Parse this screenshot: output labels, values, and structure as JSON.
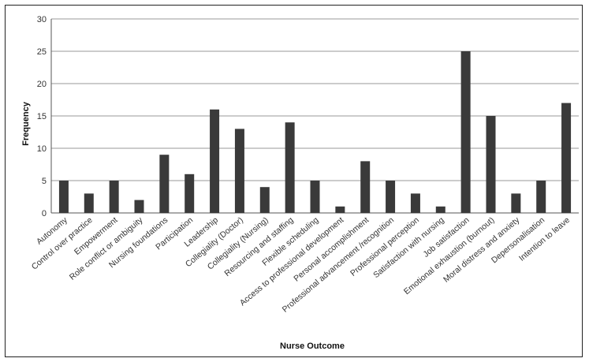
{
  "chart_data": {
    "type": "bar",
    "title": "",
    "xlabel": "Nurse Outcome",
    "ylabel": "Frequency",
    "ylim": [
      0,
      30
    ],
    "yticks": [
      0,
      5,
      10,
      15,
      20,
      25,
      30
    ],
    "grid": true,
    "legend": "none",
    "bar_color": "#3a3a3a",
    "categories": [
      "Autonomy",
      "Control over practice",
      "Empowerment",
      "Role conflict or ambiguity",
      "Nursing foundations",
      "Participation",
      "Leadership",
      "Collegiality (Doctor)",
      "Collegiality (Nursing)",
      "Resourcing and staffing",
      "Flexible scheduling",
      "Access to professional development",
      "Personal accomplishment",
      "Professional advancement /recognition",
      "Professional perception",
      "Satisfaction with nursing",
      "Job satisfaction",
      "Emotional exhaustion (burnout)",
      "Moral distress and anxiety",
      "Depersonalisation",
      "Intention to leave"
    ],
    "values": [
      5,
      3,
      5,
      2,
      9,
      6,
      16,
      13,
      4,
      14,
      5,
      1,
      8,
      5,
      3,
      1,
      25,
      15,
      3,
      5,
      17
    ]
  }
}
